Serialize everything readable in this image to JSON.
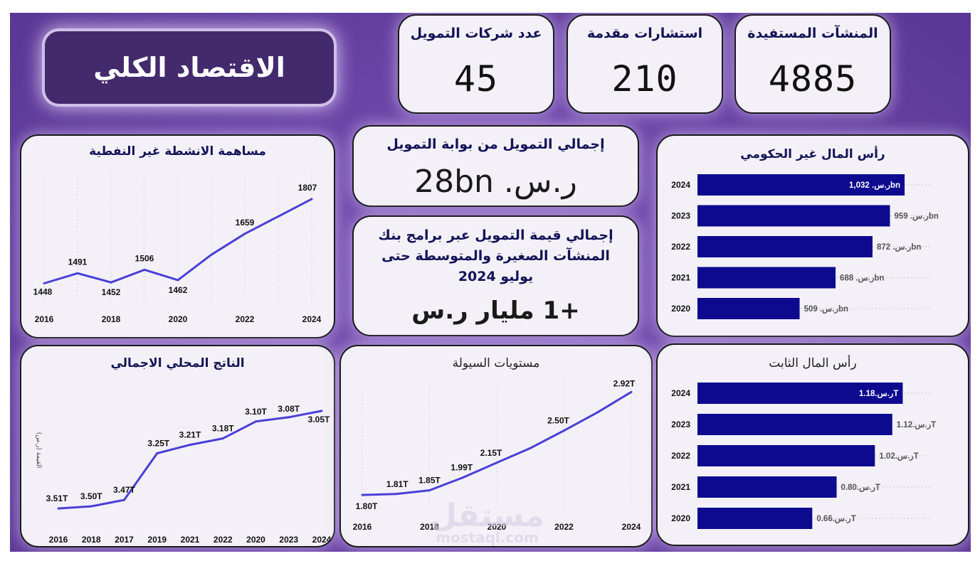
{
  "header": {
    "title": "الاقتصاد الكلي"
  },
  "kpis": {
    "funding_companies": {
      "label": "عدد شركات التمويل",
      "value": "45"
    },
    "consultations": {
      "label": "استشارات مقدمة",
      "value": "210"
    },
    "beneficiaries": {
      "label": "المنشآت المستفيدة",
      "value": "4885"
    }
  },
  "funding_portal": {
    "label": "إجمالي التمويل من بوابة التمويل",
    "value": "ر.س. 28bn"
  },
  "sme_funding": {
    "label": "إجمالي قيمة التمويل عبر برامج بنك المنشآت الصغيرة والمتوسطة حتى يوليو 2024",
    "value": "+1 مليار ر.س"
  },
  "watermark": {
    "line1": "مستقل",
    "line2": "mostaql.com"
  },
  "colors": {
    "background": "#6a44a6",
    "line": "#4b3fd6",
    "bar": "#0e0a8f",
    "title_text": "#131358"
  },
  "chart_data": [
    {
      "id": "non_oil",
      "type": "line",
      "title": "مساهمة الانشطة غير النفطية",
      "x": [
        2016,
        2017,
        2018,
        2019,
        2020,
        2021,
        2022,
        2023,
        2024
      ],
      "values": [
        1448,
        1491,
        1452,
        1506,
        1462,
        1570,
        1659,
        1733,
        1807
      ],
      "point_labels": [
        "1448",
        "1491",
        "1452",
        "1506",
        "1462",
        "",
        "1659",
        "",
        "1807"
      ],
      "tick_labels": [
        "2016",
        "2018",
        "2020",
        "2022",
        "2024"
      ],
      "ylim": [
        1380,
        1840
      ]
    },
    {
      "id": "gov_capital",
      "type": "bar",
      "orientation": "horizontal",
      "title": "رأس المال غير الحكومي",
      "categories": [
        "2024",
        "2023",
        "2022",
        "2021",
        "2020"
      ],
      "values": [
        1032,
        959,
        872,
        688,
        509
      ],
      "value_labels": [
        "ر.س. 1,032bn",
        "ر.س. 959bn",
        "ر.س. 872bn",
        "ر.س. 688bn",
        "ر.س. 509bn"
      ],
      "xlim": [
        0,
        1170
      ]
    },
    {
      "id": "gdp",
      "type": "line",
      "title": "الناتج المحلي الاجمالي",
      "ylabel": "القيمة (ر.س)",
      "x": [
        "2016",
        "2018",
        "2017",
        "2019",
        "2021",
        "2022",
        "2020",
        "2023",
        "2024"
      ],
      "values": [
        3.51,
        3.5,
        3.47,
        3.25,
        3.21,
        3.18,
        3.1,
        3.08,
        3.05
      ],
      "point_labels": [
        "3.51T",
        "3.50T",
        "3.47T",
        "3.25T",
        "3.21T",
        "3.18T",
        "3.10T",
        "3.08T",
        "3.05T"
      ],
      "ylim": [
        3.55,
        2.98
      ]
    },
    {
      "id": "liquidity",
      "type": "line",
      "title": "مستويات السيولة",
      "x": [
        2016,
        2017,
        2018,
        2019,
        2020,
        2021,
        2022,
        2023,
        2024
      ],
      "values": [
        1.8,
        1.81,
        1.85,
        1.99,
        2.15,
        2.31,
        2.5,
        2.7,
        2.92
      ],
      "point_labels": [
        "1.80T",
        "1.81T",
        "1.85T",
        "1.99T",
        "2.15T",
        "",
        "2.50T",
        "",
        "2.92T"
      ],
      "tick_labels": [
        "2016",
        "2018",
        "2020",
        "2022",
        "2024"
      ],
      "ylim": [
        1.7,
        3.0
      ]
    },
    {
      "id": "fixed_capital",
      "type": "bar",
      "orientation": "horizontal",
      "title": "رأس المال الثابت",
      "categories": [
        "2024",
        "2023",
        "2022",
        "2021",
        "2020"
      ],
      "values": [
        1.18,
        1.12,
        1.02,
        0.8,
        0.66
      ],
      "value_labels": [
        "ر.س.1.18T",
        "ر.س.1.12T",
        "ر.س.1.02T",
        "ر.س.0.80T",
        "ر.س.0.66T"
      ],
      "xlim": [
        0,
        1.35
      ]
    }
  ]
}
